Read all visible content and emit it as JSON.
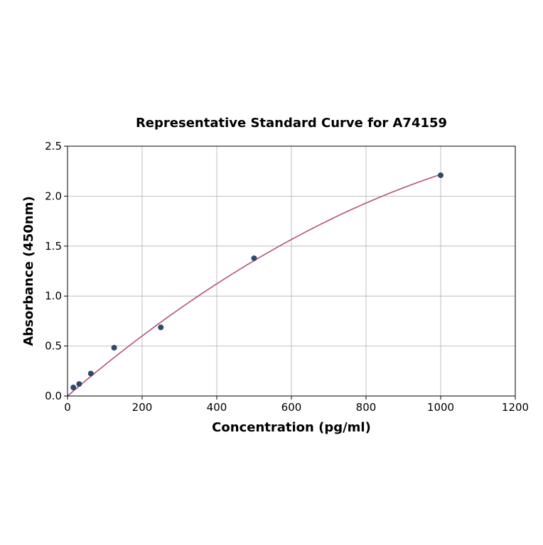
{
  "chart_data": {
    "type": "scatter",
    "title": "Representative Standard Curve for A74159",
    "xlabel": "Concentration (pg/ml)",
    "ylabel": "Absorbance (450nm)",
    "xlim": [
      0,
      1200
    ],
    "ylim": [
      0,
      2.5
    ],
    "xticks": [
      0,
      200,
      400,
      600,
      800,
      1000,
      1200
    ],
    "yticks": [
      0.0,
      0.5,
      1.0,
      1.5,
      2.0,
      2.5
    ],
    "ytick_labels": [
      "0.0",
      "0.5",
      "1.0",
      "1.5",
      "2.0",
      "2.5"
    ],
    "grid": true,
    "points": [
      {
        "x": 15.6,
        "y": 0.085
      },
      {
        "x": 31.25,
        "y": 0.12
      },
      {
        "x": 62.5,
        "y": 0.225
      },
      {
        "x": 125,
        "y": 0.483
      },
      {
        "x": 250,
        "y": 0.687
      },
      {
        "x": 500,
        "y": 1.378
      },
      {
        "x": 1000,
        "y": 2.209
      }
    ],
    "fit_curve": {
      "type": "quadratic",
      "a": 0.0032,
      "b": -9.83e-07,
      "x_range": [
        0,
        1000
      ]
    },
    "colors": {
      "points": "#2e4a6b",
      "curve": "#b5517a",
      "grid": "#b0b0b0"
    }
  }
}
